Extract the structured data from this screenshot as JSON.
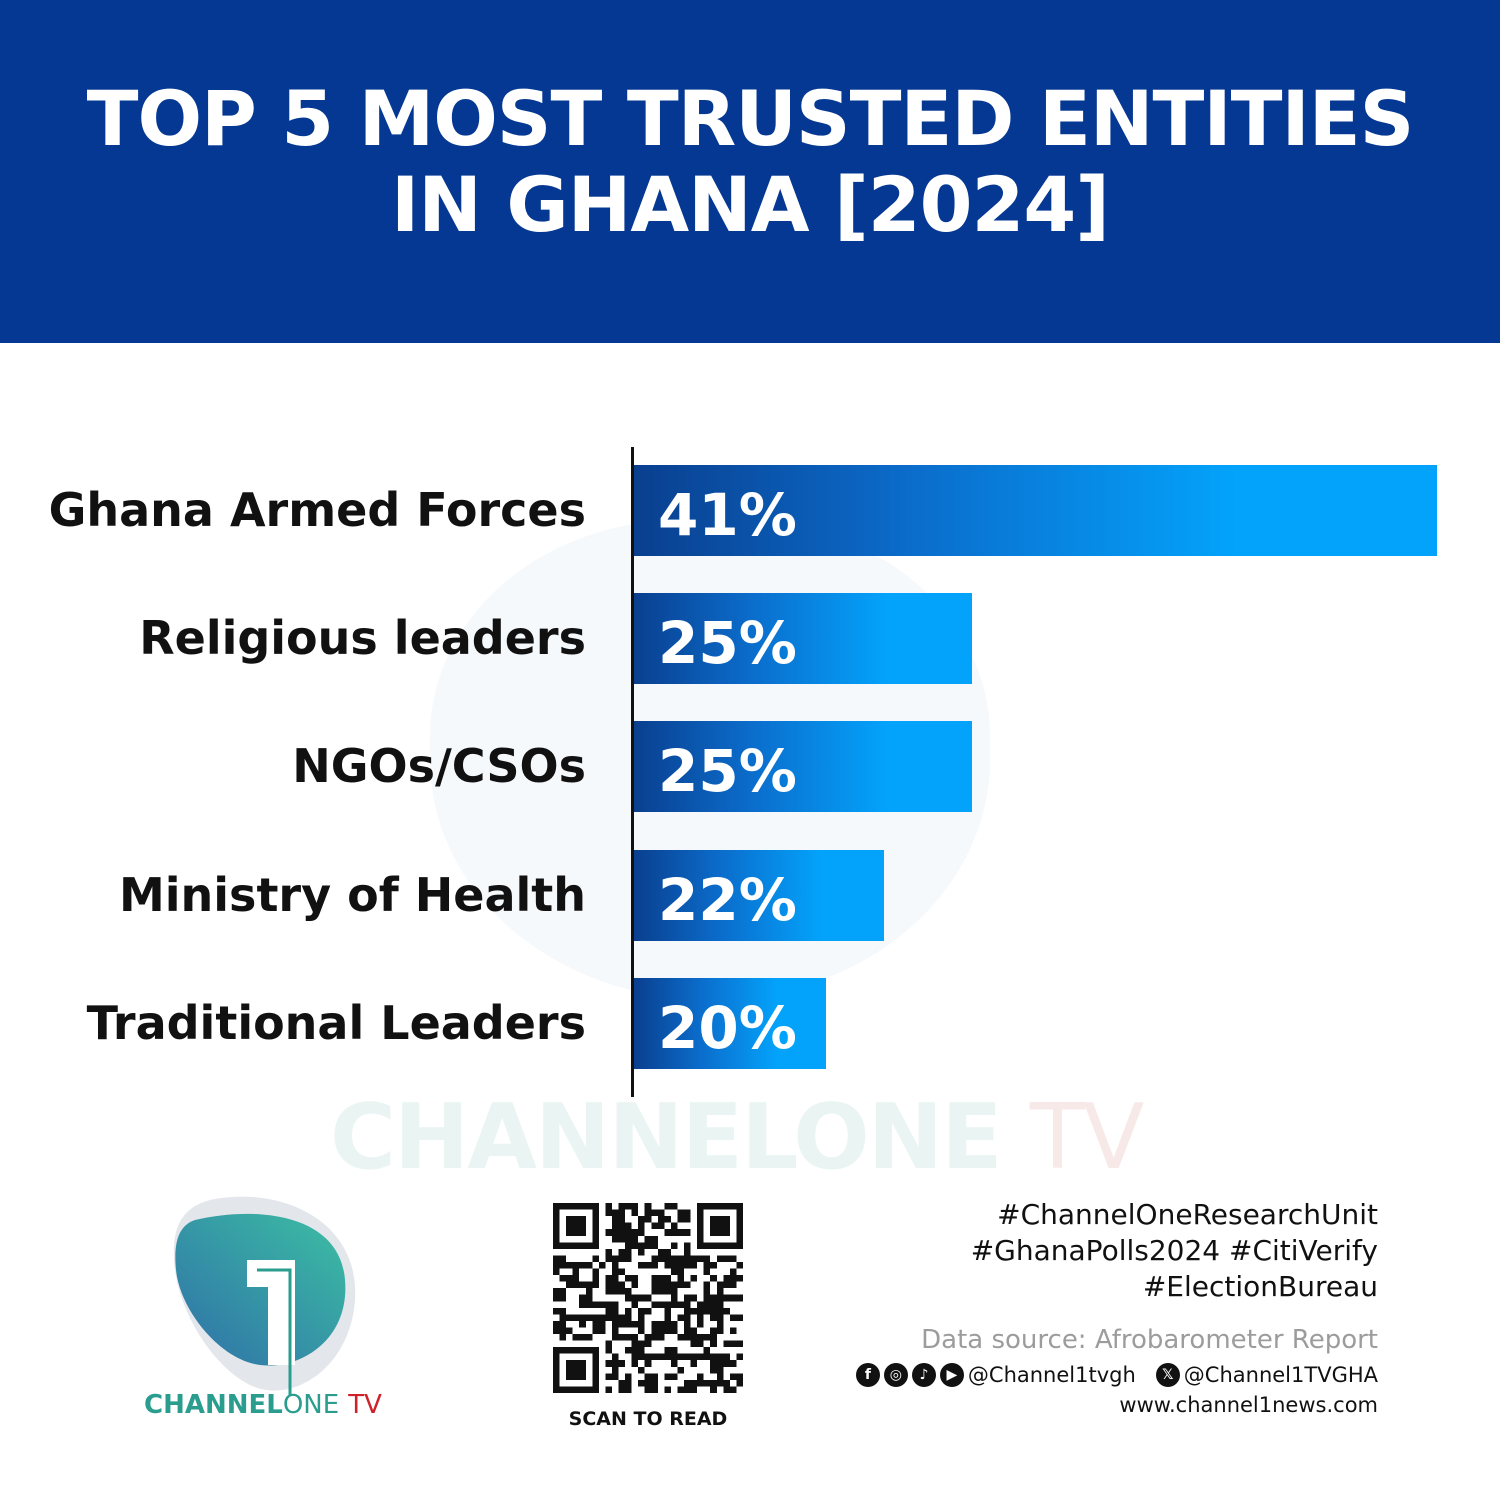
{
  "title_lines": [
    "TOP 5 MOST TRUSTED ENTITIES",
    "IN GHANA [2024]"
  ],
  "chart_data": {
    "type": "bar",
    "orientation": "horizontal",
    "title": "TOP 5 MOST TRUSTED ENTITIES IN GHANA [2024]",
    "categories": [
      "Ghana Armed Forces",
      "Religious leaders",
      "NGOs/CSOs",
      "Ministry of Health",
      "Traditional Leaders"
    ],
    "values": [
      41,
      25,
      25,
      22,
      20
    ],
    "value_labels": [
      "41%",
      "25%",
      "25%",
      "22%",
      "20%"
    ],
    "grid": false,
    "bar_color_start": "#0a3f8f",
    "bar_color_end": "#03a3fb"
  },
  "colors": {
    "header": "#053893",
    "brand_teal": "#2a9d8f",
    "brand_red": "#d0202a"
  },
  "watermark": {
    "main": "CHANNELONE",
    "tv": "TV"
  },
  "logo": {
    "channel": "CHANNEL",
    "one": "ONE",
    "tv": "TV"
  },
  "qr": {
    "caption": "SCAN TO READ"
  },
  "footer": {
    "hashtags": [
      "#ChannelOneResearchUnit",
      "#GhanaPolls2024 #CitiVerify",
      "#ElectionBureau"
    ],
    "source": "Data source: Afrobarometer Report",
    "social_icons": [
      "facebook-icon",
      "instagram-icon",
      "tiktok-icon",
      "youtube-icon",
      "x-icon"
    ],
    "handle_main": "@Channel1tvgh",
    "handle_x": "@Channel1TVGHA",
    "website": "www.channel1news.com"
  }
}
